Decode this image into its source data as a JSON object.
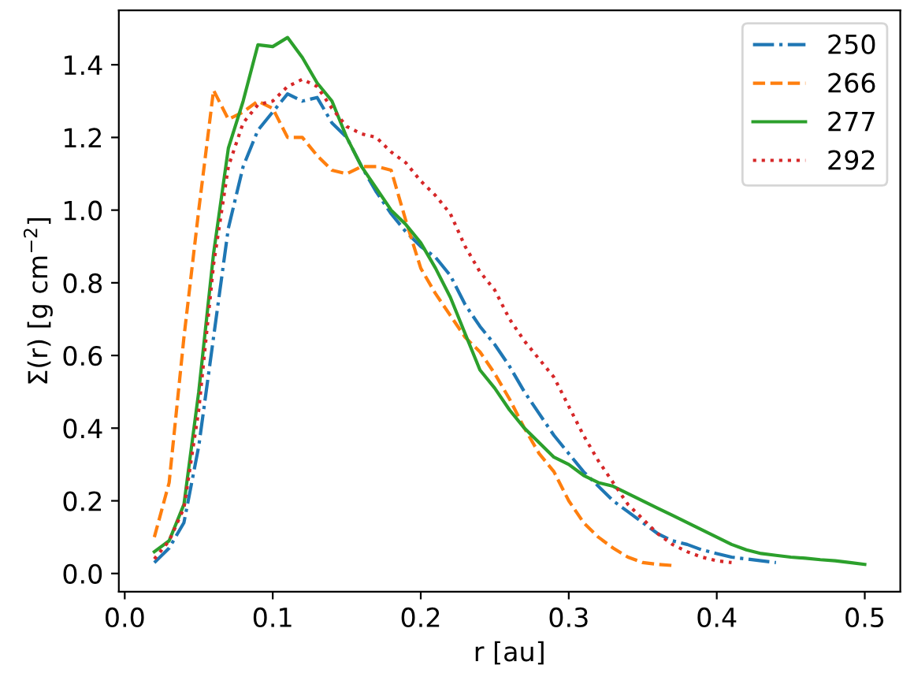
{
  "chart_data": {
    "type": "line",
    "xlabel": "r [au]",
    "ylabel": "Σ(r) [g cm$^{−2}$]",
    "xlim": [
      -0.004,
      0.524
    ],
    "ylim": [
      -0.05,
      1.55
    ],
    "xticks": [
      {
        "value": 0,
        "label": "0.0"
      },
      0.1,
      0.2,
      0.3,
      0.4,
      0.5
    ],
    "yticks": [
      {
        "value": 0,
        "label": "0.0"
      },
      0.2,
      0.4,
      0.6,
      0.8,
      {
        "value": 1,
        "label": "1.0"
      },
      1.2,
      1.4
    ],
    "grid": false,
    "legend": "top right",
    "series": [
      {
        "name": "250",
        "color": "#1f77b4",
        "line_style": "dashdot",
        "x": [
          0.02,
          0.03,
          0.04,
          0.05,
          0.06,
          0.07,
          0.08,
          0.09,
          0.1,
          0.11,
          0.12,
          0.13,
          0.14,
          0.15,
          0.16,
          0.17,
          0.18,
          0.19,
          0.2,
          0.21,
          0.22,
          0.23,
          0.24,
          0.25,
          0.26,
          0.27,
          0.28,
          0.29,
          0.3,
          0.31,
          0.32,
          0.33,
          0.34,
          0.35,
          0.36,
          0.37,
          0.38,
          0.39,
          0.4,
          0.41,
          0.42,
          0.43,
          0.44
        ],
        "values": [
          0.03,
          0.07,
          0.14,
          0.35,
          0.65,
          0.95,
          1.12,
          1.22,
          1.27,
          1.32,
          1.3,
          1.31,
          1.24,
          1.2,
          1.12,
          1.05,
          0.99,
          0.94,
          0.9,
          0.87,
          0.82,
          0.74,
          0.68,
          0.63,
          0.57,
          0.5,
          0.44,
          0.38,
          0.33,
          0.28,
          0.24,
          0.2,
          0.17,
          0.14,
          0.11,
          0.09,
          0.08,
          0.065,
          0.055,
          0.045,
          0.04,
          0.035,
          0.03
        ]
      },
      {
        "name": "266",
        "color": "#ff7f0e",
        "line_style": "dashed",
        "x": [
          0.02,
          0.03,
          0.04,
          0.05,
          0.06,
          0.07,
          0.08,
          0.09,
          0.1,
          0.11,
          0.12,
          0.13,
          0.14,
          0.15,
          0.16,
          0.17,
          0.18,
          0.19,
          0.2,
          0.21,
          0.22,
          0.23,
          0.24,
          0.25,
          0.26,
          0.27,
          0.28,
          0.29,
          0.3,
          0.31,
          0.32,
          0.33,
          0.34,
          0.35,
          0.36,
          0.37
        ],
        "values": [
          0.1,
          0.25,
          0.65,
          1.0,
          1.33,
          1.25,
          1.27,
          1.3,
          1.28,
          1.2,
          1.2,
          1.15,
          1.11,
          1.1,
          1.12,
          1.12,
          1.11,
          0.97,
          0.84,
          0.77,
          0.71,
          0.65,
          0.61,
          0.55,
          0.48,
          0.4,
          0.33,
          0.28,
          0.2,
          0.14,
          0.1,
          0.07,
          0.045,
          0.03,
          0.025,
          0.022
        ]
      },
      {
        "name": "277",
        "color": "#2ca02c",
        "line_style": "solid",
        "x": [
          0.02,
          0.03,
          0.04,
          0.05,
          0.06,
          0.07,
          0.08,
          0.09,
          0.1,
          0.11,
          0.12,
          0.13,
          0.14,
          0.15,
          0.16,
          0.17,
          0.18,
          0.19,
          0.2,
          0.21,
          0.22,
          0.23,
          0.24,
          0.25,
          0.26,
          0.27,
          0.28,
          0.29,
          0.3,
          0.31,
          0.32,
          0.33,
          0.34,
          0.35,
          0.36,
          0.37,
          0.38,
          0.39,
          0.4,
          0.41,
          0.42,
          0.43,
          0.44,
          0.45,
          0.46,
          0.47,
          0.48,
          0.49,
          0.5
        ],
        "values": [
          0.06,
          0.09,
          0.19,
          0.5,
          0.88,
          1.17,
          1.3,
          1.455,
          1.45,
          1.475,
          1.42,
          1.35,
          1.3,
          1.2,
          1.12,
          1.06,
          1.0,
          0.96,
          0.91,
          0.84,
          0.76,
          0.66,
          0.56,
          0.51,
          0.45,
          0.4,
          0.36,
          0.32,
          0.3,
          0.27,
          0.25,
          0.24,
          0.22,
          0.2,
          0.18,
          0.16,
          0.14,
          0.12,
          0.1,
          0.08,
          0.065,
          0.055,
          0.05,
          0.045,
          0.042,
          0.038,
          0.035,
          0.03,
          0.025
        ]
      },
      {
        "name": "292",
        "color": "#d62728",
        "line_style": "dotted",
        "x": [
          0.02,
          0.03,
          0.04,
          0.05,
          0.06,
          0.07,
          0.08,
          0.09,
          0.1,
          0.11,
          0.12,
          0.13,
          0.14,
          0.15,
          0.16,
          0.17,
          0.18,
          0.19,
          0.2,
          0.21,
          0.22,
          0.23,
          0.24,
          0.25,
          0.26,
          0.27,
          0.28,
          0.29,
          0.3,
          0.31,
          0.32,
          0.33,
          0.34,
          0.35,
          0.36,
          0.37,
          0.38,
          0.39,
          0.4,
          0.41
        ],
        "values": [
          0.04,
          0.09,
          0.18,
          0.45,
          0.85,
          1.12,
          1.24,
          1.29,
          1.3,
          1.34,
          1.36,
          1.34,
          1.28,
          1.23,
          1.21,
          1.2,
          1.16,
          1.13,
          1.08,
          1.04,
          0.99,
          0.9,
          0.83,
          0.78,
          0.7,
          0.64,
          0.59,
          0.54,
          0.46,
          0.38,
          0.31,
          0.25,
          0.19,
          0.15,
          0.11,
          0.08,
          0.06,
          0.045,
          0.035,
          0.03
        ]
      }
    ]
  }
}
